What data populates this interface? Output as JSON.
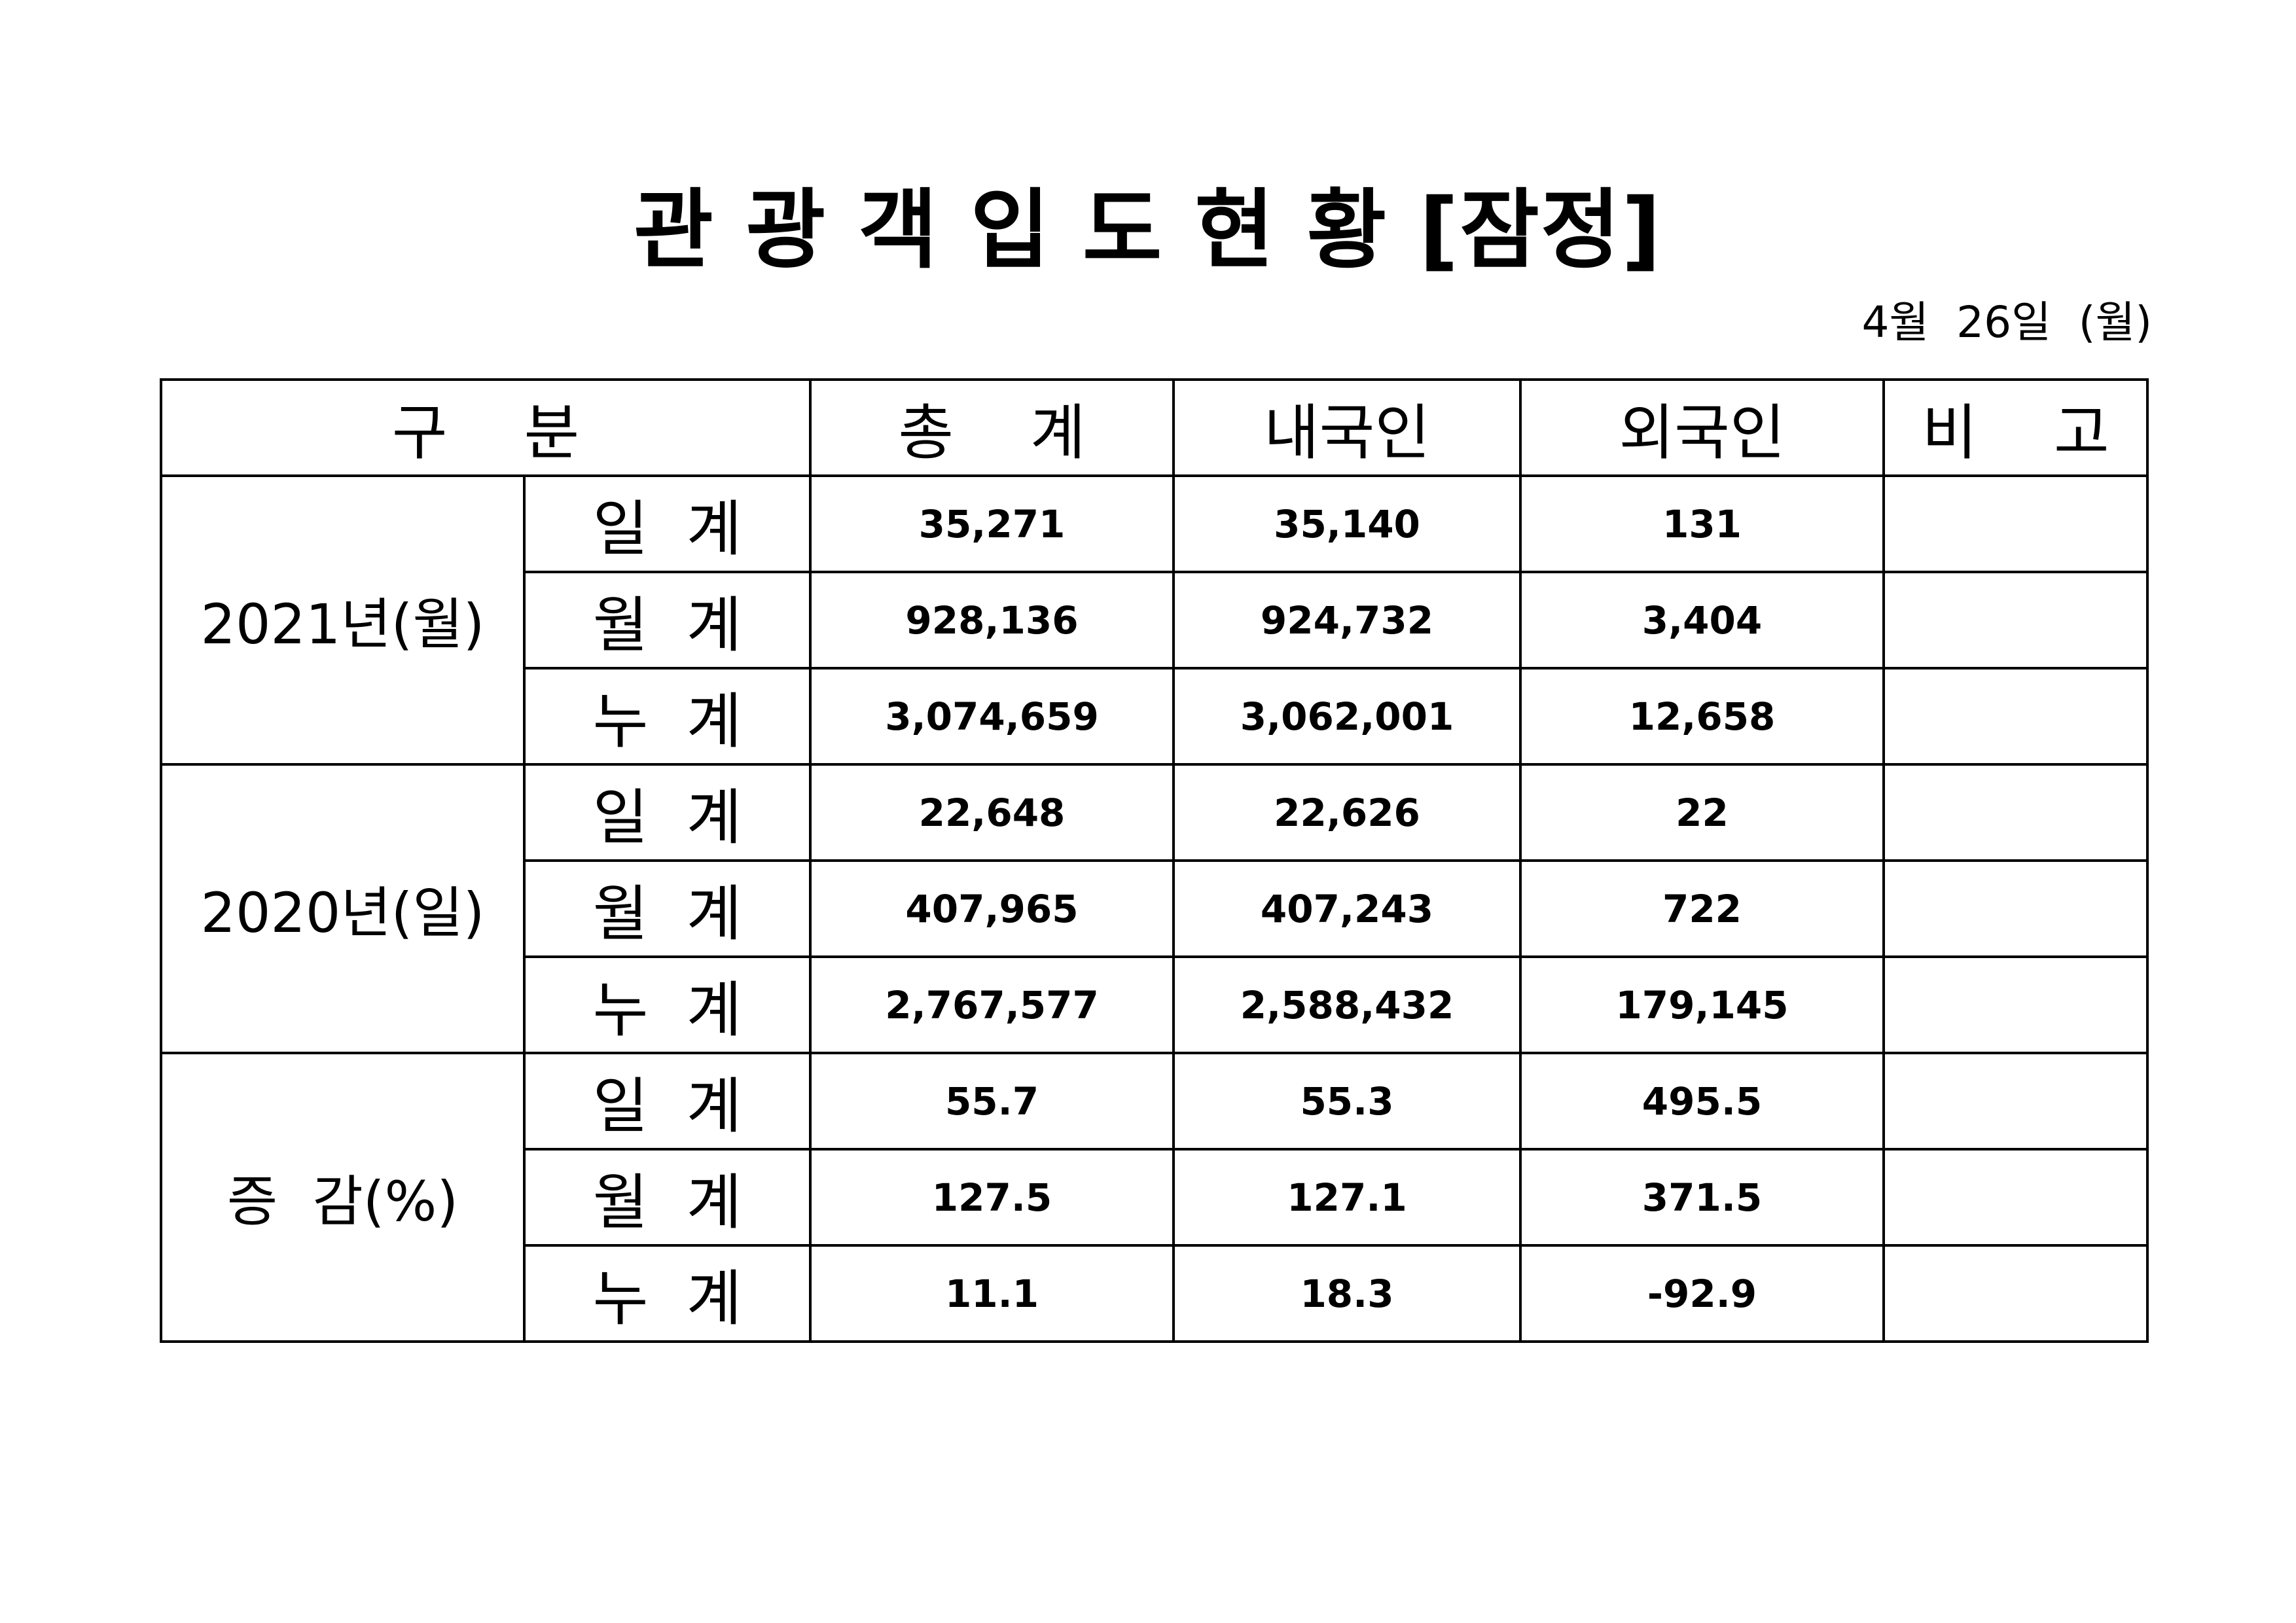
{
  "title": "관 광 객 입 도 현 황 [잠정]",
  "date": "4월  26일  (월)",
  "table": {
    "headers": {
      "category": "구    분",
      "total": "총    계",
      "domestic": "내국인",
      "foreign": "외국인",
      "remarks": "비    고"
    },
    "groups": [
      {
        "label": "2021년(월)",
        "rows": [
          {
            "label": "일  계",
            "total": "35,271",
            "domestic": "35,140",
            "foreign": "131",
            "note": ""
          },
          {
            "label": "월  계",
            "total": "928,136",
            "domestic": "924,732",
            "foreign": "3,404",
            "note": ""
          },
          {
            "label": "누  계",
            "total": "3,074,659",
            "domestic": "3,062,001",
            "foreign": "12,658",
            "note": ""
          }
        ]
      },
      {
        "label": "2020년(일)",
        "rows": [
          {
            "label": "일  계",
            "total": "22,648",
            "domestic": "22,626",
            "foreign": "22",
            "note": ""
          },
          {
            "label": "월  계",
            "total": "407,965",
            "domestic": "407,243",
            "foreign": "722",
            "note": ""
          },
          {
            "label": "누  계",
            "total": "2,767,577",
            "domestic": "2,588,432",
            "foreign": "179,145",
            "note": ""
          }
        ]
      },
      {
        "label": "증  감(%)",
        "rows": [
          {
            "label": "일  계",
            "total": "55.7",
            "domestic": "55.3",
            "foreign": "495.5",
            "note": ""
          },
          {
            "label": "월  계",
            "total": "127.5",
            "domestic": "127.1",
            "foreign": "371.5",
            "note": ""
          },
          {
            "label": "누  계",
            "total": "11.1",
            "domestic": "18.3",
            "foreign": "-92.9",
            "note": ""
          }
        ]
      }
    ]
  }
}
